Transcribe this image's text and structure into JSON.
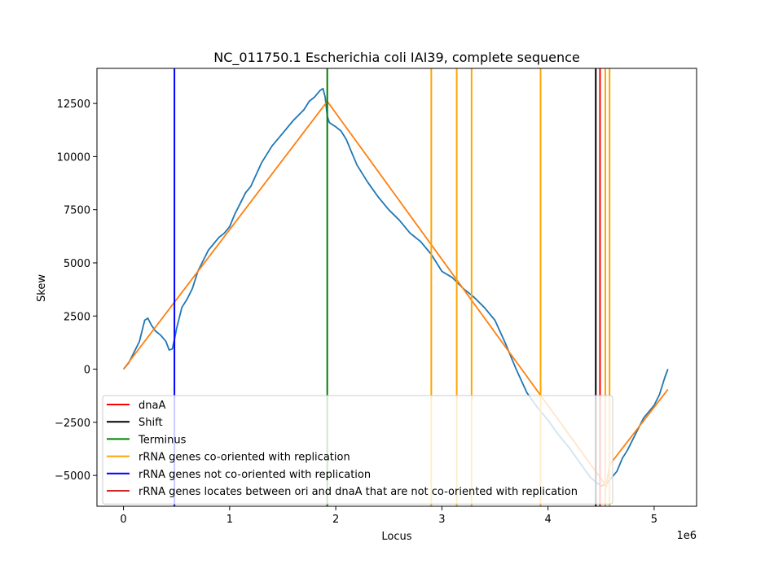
{
  "chart_data": {
    "type": "line",
    "title": "NC_011750.1 Escherichia coli IAI39, complete sequence",
    "xlabel": "Locus",
    "ylabel": "Skew",
    "x_offset_label": "1e6",
    "xlim": [
      -0.25,
      5.4
    ],
    "ylim": [
      -6450,
      14150
    ],
    "x_ticks": [
      0,
      1,
      2,
      3,
      4,
      5
    ],
    "x_tick_labels": [
      "0",
      "1",
      "2",
      "3",
      "4",
      "5"
    ],
    "y_ticks": [
      -5000,
      -2500,
      0,
      2500,
      5000,
      7500,
      10000,
      12500
    ],
    "y_tick_labels": [
      "−5000",
      "−2500",
      "0",
      "2500",
      "5000",
      "7500",
      "10000",
      "12500"
    ],
    "grid": false,
    "legend_placement": "lower-left",
    "colors": {
      "skew": "#1f77b4",
      "fit": "#ff7f0e",
      "dnaA": "#ff0000",
      "shift": "#000000",
      "terminus": "#008000",
      "co_oriented": "#ffa500",
      "not_co_oriented": "#0000ff",
      "between": "#d62728"
    },
    "skew_series": {
      "x": [
        0,
        0.05,
        0.1,
        0.15,
        0.18,
        0.2,
        0.23,
        0.26,
        0.3,
        0.35,
        0.4,
        0.43,
        0.46,
        0.48,
        0.5,
        0.55,
        0.6,
        0.65,
        0.7,
        0.75,
        0.8,
        0.85,
        0.9,
        0.95,
        1.0,
        1.05,
        1.1,
        1.15,
        1.2,
        1.3,
        1.4,
        1.5,
        1.6,
        1.7,
        1.75,
        1.8,
        1.85,
        1.88,
        1.9,
        1.92,
        1.94,
        1.97,
        2.0,
        2.05,
        2.1,
        2.15,
        2.2,
        2.3,
        2.4,
        2.5,
        2.6,
        2.7,
        2.8,
        2.9,
        3.0,
        3.1,
        3.2,
        3.3,
        3.4,
        3.5,
        3.6,
        3.7,
        3.8,
        3.9,
        4.0,
        4.1,
        4.2,
        4.3,
        4.4,
        4.45,
        4.5,
        4.55,
        4.6,
        4.65,
        4.7,
        4.75,
        4.8,
        4.85,
        4.9,
        4.95,
        5.0,
        5.05,
        5.1,
        5.13
      ],
      "y": [
        0,
        300,
        800,
        1300,
        1900,
        2300,
        2400,
        2100,
        1800,
        1600,
        1300,
        900,
        950,
        1400,
        1900,
        2900,
        3300,
        3800,
        4600,
        5100,
        5600,
        5900,
        6200,
        6400,
        6700,
        7300,
        7800,
        8300,
        8600,
        9700,
        10500,
        11100,
        11700,
        12200,
        12600,
        12800,
        13100,
        13200,
        12800,
        11900,
        11600,
        11500,
        11400,
        11200,
        10800,
        10200,
        9600,
        8800,
        8100,
        7500,
        7000,
        6400,
        6000,
        5400,
        4600,
        4300,
        3800,
        3400,
        2900,
        2300,
        1200,
        0,
        -1100,
        -1800,
        -2400,
        -3100,
        -3700,
        -4400,
        -5100,
        -5300,
        -5500,
        -5400,
        -5100,
        -4800,
        -4200,
        -3800,
        -3300,
        -2800,
        -2300,
        -2000,
        -1700,
        -1200,
        -400,
        0
      ]
    },
    "fit_series": {
      "x": [
        0,
        1.92,
        4.55,
        4.58,
        5.13
      ],
      "y": [
        0,
        12600,
        -5500,
        -4500,
        -950
      ]
    },
    "vlines": {
      "dnaA": [
        4.49
      ],
      "shift": [
        4.45
      ],
      "terminus": [
        1.92
      ],
      "co_oriented": [
        2.9,
        3.14,
        3.28,
        3.93,
        4.54,
        4.58
      ],
      "not_co_oriented": [
        0.48
      ]
    },
    "legend": [
      {
        "label": "dnaA",
        "color_key": "dnaA"
      },
      {
        "label": "Shift",
        "color_key": "shift"
      },
      {
        "label": "Terminus",
        "color_key": "terminus"
      },
      {
        "label": "rRNA genes co-oriented with replication",
        "color_key": "co_oriented"
      },
      {
        "label": "rRNA genes not co-oriented with replication",
        "color_key": "not_co_oriented"
      },
      {
        "label": "rRNA genes locates between ori and dnaA that are not co-oriented with replication",
        "color_key": "between"
      }
    ]
  }
}
